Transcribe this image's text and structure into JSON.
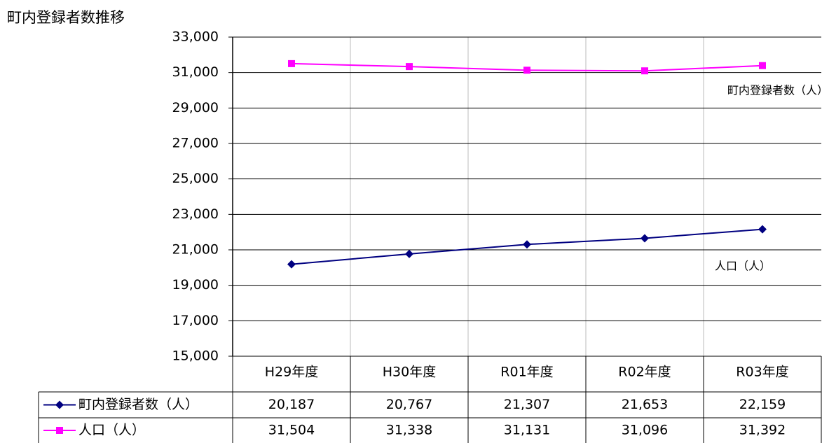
{
  "chart_data": {
    "type": "line",
    "title": "町内登録者数推移",
    "categories": [
      "H29年度",
      "H30年度",
      "R01年度",
      "R02年度",
      "R03年度"
    ],
    "series": [
      {
        "name": "町内登録者数（人）",
        "color": "#000080",
        "values": [
          20187,
          20767,
          21307,
          21653,
          22159
        ],
        "value_labels": [
          "20,187",
          "20,767",
          "21,307",
          "21,653",
          "22,159"
        ]
      },
      {
        "name": "人口（人）",
        "color": "#ff00ff",
        "values": [
          31504,
          31338,
          31131,
          31096,
          31392
        ],
        "value_labels": [
          "31,504",
          "31,338",
          "31,131",
          "31,096",
          "31,392"
        ]
      }
    ],
    "ylim": [
      15000,
      33000
    ],
    "yticks": [
      {
        "value": 15000,
        "label": "15,000"
      },
      {
        "value": 17000,
        "label": "17,000"
      },
      {
        "value": 19000,
        "label": "19,000"
      },
      {
        "value": 21000,
        "label": "21,000"
      },
      {
        "value": 23000,
        "label": "23,000"
      },
      {
        "value": 25000,
        "label": "25,000"
      },
      {
        "value": 27000,
        "label": "27,000"
      },
      {
        "value": 29000,
        "label": "29,000"
      },
      {
        "value": 31000,
        "label": "31,000"
      },
      {
        "value": 33000,
        "label": "33,000"
      }
    ],
    "grid": true
  }
}
